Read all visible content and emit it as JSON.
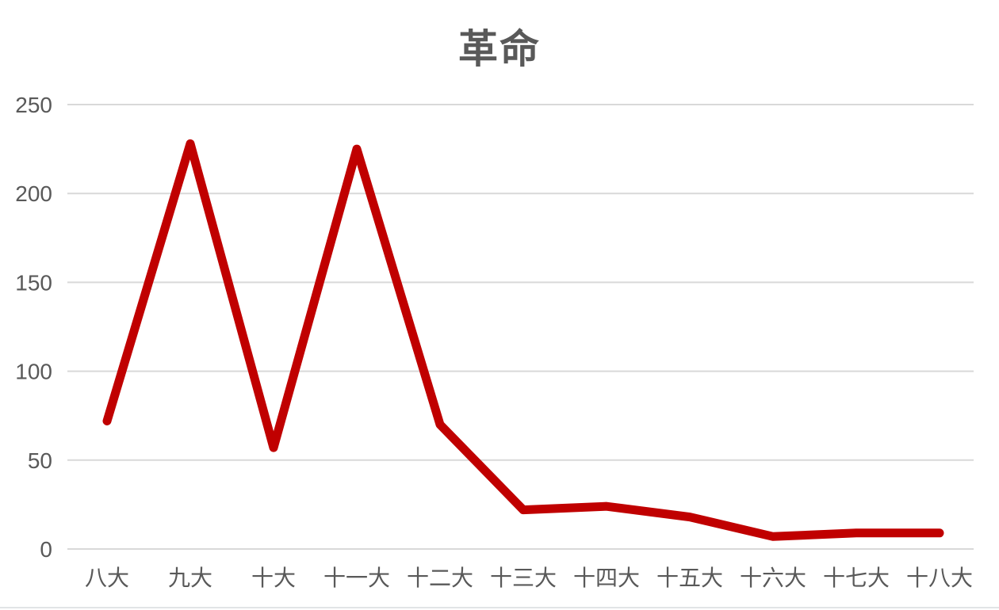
{
  "chart_data": {
    "type": "line",
    "title": "革命",
    "categories": [
      "八大",
      "九大",
      "十大",
      "十一大",
      "十二大",
      "十三大",
      "十四大",
      "十五大",
      "十六大",
      "十七大",
      "十八大"
    ],
    "series": [
      {
        "name": "革命",
        "values": [
          72,
          228,
          57,
          225,
          70,
          22,
          24,
          18,
          7,
          9,
          9
        ]
      }
    ],
    "xlabel": "",
    "ylabel": "",
    "y_ticks": [
      0,
      50,
      100,
      150,
      200,
      250
    ],
    "ylim": [
      0,
      250
    ],
    "grid": true,
    "legend": "none",
    "colors": {
      "line": "#C00000",
      "gridline": "#D9D9D9",
      "tick_label": "#595959",
      "title": "#595959",
      "background": "#FFFFFF"
    }
  }
}
